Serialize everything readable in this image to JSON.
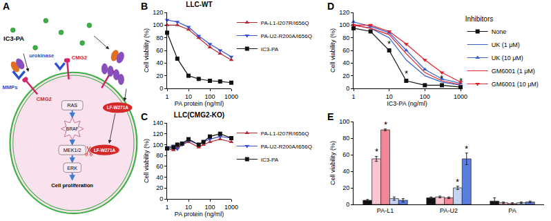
{
  "diagram": {
    "panel": "A",
    "title": "IC3-PA",
    "receptor_labels": [
      "CMG2",
      "CMG2"
    ],
    "proteases": [
      "MMPs",
      "urokinase"
    ],
    "pathway": [
      "RAS",
      "BRAF",
      "MEK1/2",
      "ERK",
      "Cell proliferation"
    ],
    "toxin_labels": [
      "LF-W271A",
      "LF-W271A"
    ]
  },
  "chart_data": [
    {
      "panel": "B",
      "type": "line",
      "title": "LLC-WT",
      "x_label": "PA protein (ng/ml)",
      "y_label": "Cell viability (%)",
      "log": "x",
      "grid": false,
      "legend": "right",
      "xlim": [
        1,
        1000
      ],
      "xticks": [
        1,
        10,
        100,
        1000
      ],
      "ylim": [
        0,
        120
      ],
      "yticks": [
        0,
        20,
        40,
        60,
        80,
        100,
        120
      ],
      "x": [
        1,
        3,
        10,
        30,
        100,
        300,
        1000
      ],
      "series": [
        {
          "name": "PA-L1-I207R/I656Q",
          "color": "#b8292f",
          "marker": "triangle-up",
          "values": [
            100,
            100,
            93,
            80,
            65,
            55,
            45
          ]
        },
        {
          "name": "PA-U2-R200A/I656Q",
          "color": "#3a4fd0",
          "marker": "triangle-down",
          "values": [
            108,
            105,
            97,
            83,
            70,
            60,
            50
          ]
        },
        {
          "name": "IC3-PA",
          "color": "#111111",
          "marker": "square",
          "values": [
            88,
            47,
            20,
            15,
            12,
            11,
            9
          ]
        }
      ]
    },
    {
      "panel": "C",
      "type": "line",
      "title": "LLC(CMG2-KO)",
      "x_label": "PA protein (ng/ml)",
      "y_label": "Cell viability (%)",
      "log": "x",
      "grid": false,
      "legend": "right",
      "xlim": [
        1,
        1000
      ],
      "xticks": [
        1,
        10,
        100,
        1000
      ],
      "ylim": [
        0,
        140
      ],
      "yticks": [
        0,
        20,
        40,
        60,
        80,
        100,
        120,
        140
      ],
      "x": [
        1,
        2,
        3,
        5,
        10,
        30,
        50,
        100,
        300,
        1000
      ],
      "series": [
        {
          "name": "PA-L1-I207R/I656Q",
          "color": "#b8292f",
          "marker": "triangle-up",
          "values": [
            92,
            90,
            95,
            100,
            105,
            95,
            100,
            105,
            110,
            105
          ]
        },
        {
          "name": "PA-U2-R200A/I656Q",
          "color": "#3a4fd0",
          "marker": "triangle-down",
          "values": [
            95,
            98,
            92,
            100,
            108,
            100,
            105,
            110,
            115,
            112
          ]
        },
        {
          "name": "IC3-PA",
          "color": "#111111",
          "marker": "square",
          "values": [
            93,
            95,
            100,
            102,
            110,
            100,
            105,
            115,
            120,
            112
          ]
        }
      ]
    },
    {
      "panel": "D",
      "type": "line",
      "x_label": "IC3-PA (ng/ml)",
      "y_label": "Cell viability (%)",
      "log": "x",
      "grid": false,
      "legend": "right",
      "legend_title": "Inhibitors",
      "xlim": [
        1,
        1000
      ],
      "xticks": [
        1,
        10,
        100,
        1000
      ],
      "ylim": [
        0,
        120
      ],
      "yticks": [
        0,
        20,
        40,
        60,
        80,
        100,
        120
      ],
      "x": [
        1,
        3,
        10,
        30,
        100,
        300,
        1000
      ],
      "series": [
        {
          "name": "None",
          "color": "#111111",
          "marker": "square",
          "values": [
            95,
            90,
            60,
            12,
            5,
            5,
            2
          ]
        },
        {
          "name": "UK (1 μM)",
          "color": "#3a5fcd",
          "marker": "triangle-up-open",
          "values": [
            100,
            95,
            80,
            45,
            20,
            10,
            5
          ]
        },
        {
          "name": "UK (10 μM)",
          "color": "#3a5fcd",
          "marker": "triangle-up",
          "values": [
            105,
            98,
            88,
            60,
            30,
            15,
            8
          ]
        },
        {
          "name": "GM6001 (1 μM)",
          "color": "#e0202a",
          "marker": "triangle-down-open",
          "values": [
            100,
            95,
            85,
            55,
            25,
            12,
            6
          ]
        },
        {
          "name": "GM6001 (10 μM)",
          "color": "#e0202a",
          "marker": "triangle-down",
          "values": [
            100,
            100,
            90,
            70,
            45,
            25,
            10
          ]
        }
      ],
      "annotations": [
        {
          "x": 10,
          "y": 70,
          "text": "*"
        },
        {
          "x": 30,
          "y": 24,
          "text": "*"
        },
        {
          "x": 300,
          "y": 16,
          "text": "*"
        },
        {
          "x": 1000,
          "y": 12,
          "text": "*"
        }
      ]
    },
    {
      "panel": "E",
      "type": "bar",
      "y_label": "Cell viability (%)",
      "grid": false,
      "categories": [
        "PA-L1",
        "PA-U2",
        "PA"
      ],
      "ylim": [
        0,
        100
      ],
      "yticks": [
        0,
        20,
        40,
        60,
        80,
        100
      ],
      "series": [
        {
          "color": "#111111",
          "values": [
            5,
            8,
            4
          ],
          "errors": [
            1,
            1,
            4
          ]
        },
        {
          "color": "#f7c6d0",
          "values": [
            55,
            9,
            2
          ],
          "errors": [
            3,
            1,
            1
          ]
        },
        {
          "color": "#f08898",
          "values": [
            90,
            8,
            1
          ],
          "errors": [
            1,
            1,
            1
          ]
        },
        {
          "color": "#c4d2f4",
          "values": [
            7,
            20,
            2
          ],
          "errors": [
            2,
            2,
            1
          ]
        },
        {
          "color": "#5a7de0",
          "values": [
            5,
            55,
            3
          ],
          "errors": [
            2,
            7,
            1
          ]
        }
      ],
      "annotations": [
        {
          "category": "PA-L1",
          "series": 1,
          "text": "*"
        },
        {
          "category": "PA-L1",
          "series": 2,
          "text": "*"
        },
        {
          "category": "PA-U2",
          "series": 3,
          "text": "*"
        },
        {
          "category": "PA-U2",
          "series": 4,
          "text": "*"
        }
      ]
    }
  ]
}
